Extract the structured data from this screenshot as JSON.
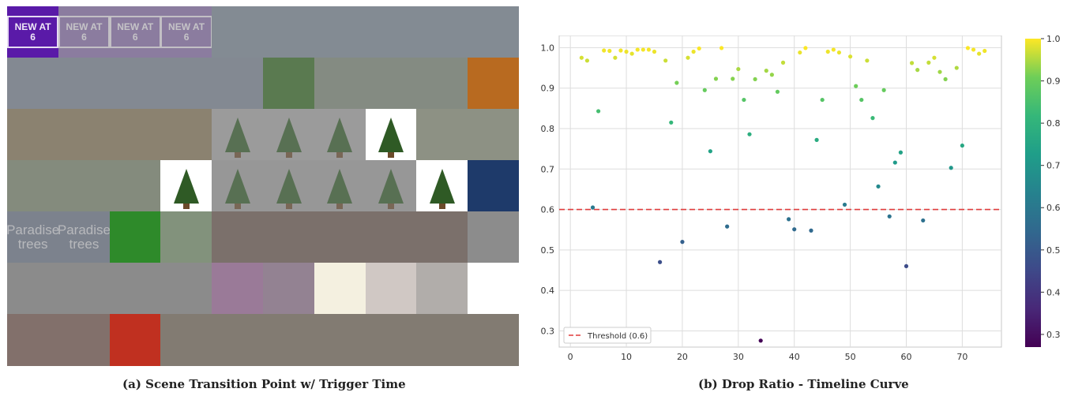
{
  "panel_a": {
    "caption": "(a) Scene Transition Point w/ Trigger Time",
    "rows": 7,
    "cols": 10,
    "highlight_color": "#5a1aa8",
    "tiles": [
      {
        "color": "#5a1aa8",
        "text": "NEW AT 6",
        "style": "boxed",
        "bright": true
      },
      {
        "color": "#8a70b0",
        "text": "NEW AT 6",
        "style": "boxed"
      },
      {
        "color": "#8a70b0",
        "text": "NEW AT 6",
        "style": "boxed"
      },
      {
        "color": "#8a70b0",
        "text": "NEW AT 6",
        "style": "boxed"
      },
      {
        "color": "#7d8a9a"
      },
      {
        "color": "#7d8a9a"
      },
      {
        "color": "#7d8a9a"
      },
      {
        "color": "#7d8a9a"
      },
      {
        "color": "#7d8a9a"
      },
      {
        "color": "#7d8a9a"
      },
      {
        "color": "#7d8898"
      },
      {
        "color": "#7d8898"
      },
      {
        "color": "#7d8898"
      },
      {
        "color": "#7d8898"
      },
      {
        "color": "#7d8898"
      },
      {
        "color": "#5a7a50",
        "bright": true
      },
      {
        "color": "#7e8a7a"
      },
      {
        "color": "#7e8a7a"
      },
      {
        "color": "#7e8a7a"
      },
      {
        "color": "#b86a20",
        "bright": true
      },
      {
        "color": "#8a7a5a"
      },
      {
        "color": "#8a7a5a"
      },
      {
        "color": "#8a7a5a"
      },
      {
        "color": "#8a7a5a"
      },
      {
        "color": "#a8a8a8",
        "tree": true
      },
      {
        "color": "#a8a8a8",
        "tree": true
      },
      {
        "color": "#a8a8a8",
        "tree": true
      },
      {
        "color": "#ffffff",
        "tree": true,
        "bright": true
      },
      {
        "color": "#8e957e"
      },
      {
        "color": "#8e957e"
      },
      {
        "color": "#7f8a72"
      },
      {
        "color": "#7f8a72"
      },
      {
        "color": "#7f8a72"
      },
      {
        "color": "#ffffff",
        "tree": true,
        "bright": true
      },
      {
        "color": "#a0a0a0",
        "tree": true
      },
      {
        "color": "#a0a0a0",
        "tree": true
      },
      {
        "color": "#a0a0a0",
        "tree": true
      },
      {
        "color": "#a0a0a0",
        "tree": true
      },
      {
        "color": "#ffffff",
        "tree": true,
        "bright": true
      },
      {
        "color": "#1e3a6a",
        "bright": true
      },
      {
        "color": "#6f7a8e",
        "text": "Paradise trees",
        "style": "para"
      },
      {
        "color": "#6f7a8e",
        "text": "Paradise trees",
        "style": "para"
      },
      {
        "color": "#2e8a2a",
        "bright": true
      },
      {
        "color": "#7a9870"
      },
      {
        "color": "#6e5a50"
      },
      {
        "color": "#6e5a50"
      },
      {
        "color": "#6e5a50"
      },
      {
        "color": "#6e5a50"
      },
      {
        "color": "#6e5a50"
      },
      {
        "color": "#8c8c8c"
      },
      {
        "color": "#8a8a8a"
      },
      {
        "color": "#8a8a8a"
      },
      {
        "color": "#8a8a8a"
      },
      {
        "color": "#8a8a8a"
      },
      {
        "color": "#9a7a98",
        "bright": true
      },
      {
        "color": "#9a7a98"
      },
      {
        "color": "#f4f0e0",
        "bright": true
      },
      {
        "color": "#d0c8c4",
        "bright": true
      },
      {
        "color": "#d0c8c4"
      },
      {
        "color": "#ffffff",
        "bright": true
      },
      {
        "color": "#7a5a50"
      },
      {
        "color": "#7a5a50"
      },
      {
        "color": "#c03020",
        "bright": true
      },
      {
        "color": "#7a6e5e"
      },
      {
        "color": "#7a6e5e"
      },
      {
        "color": "#7a6e5e"
      },
      {
        "color": "#7a6e5e"
      },
      {
        "color": "#7a6e5e"
      },
      {
        "color": "#7a6e5e"
      },
      {
        "color": "#7a6e5e"
      }
    ]
  },
  "panel_b": {
    "caption": "(b) Drop Ratio - Timeline Curve"
  },
  "chart_data": {
    "type": "scatter",
    "title": "",
    "xlabel": "",
    "ylabel": "",
    "xlim": [
      -2,
      77
    ],
    "ylim": [
      0.26,
      1.03
    ],
    "xticks": [
      0,
      10,
      20,
      30,
      40,
      50,
      60,
      70
    ],
    "yticks": [
      0.3,
      0.4,
      0.5,
      0.6,
      0.7,
      0.8,
      0.9,
      1.0
    ],
    "grid": true,
    "colormap": "viridis",
    "colorbar": {
      "range": [
        0.27,
        1.0
      ],
      "ticks": [
        0.3,
        0.4,
        0.5,
        0.6,
        0.7,
        0.8,
        0.9,
        1.0
      ]
    },
    "threshold": {
      "value": 0.6,
      "label": "Threshold (0.6)",
      "color": "#e03c3c",
      "style": "dashed"
    },
    "legend": "bottom-left",
    "points": {
      "x": [
        2,
        3,
        4,
        5,
        6,
        7,
        8,
        9,
        10,
        11,
        12,
        13,
        14,
        15,
        16,
        17,
        18,
        19,
        20,
        21,
        22,
        23,
        24,
        25,
        26,
        27,
        28,
        29,
        30,
        31,
        32,
        33,
        34,
        35,
        36,
        37,
        38,
        39,
        40,
        41,
        42,
        43,
        44,
        45,
        46,
        47,
        48,
        49,
        50,
        51,
        52,
        53,
        54,
        55,
        56,
        57,
        58,
        59,
        60,
        61,
        62,
        63,
        64,
        65,
        66,
        67,
        68,
        69,
        70,
        71,
        72,
        73,
        74
      ],
      "y": [
        0.975,
        0.968,
        0.605,
        0.843,
        0.993,
        0.992,
        0.975,
        0.993,
        0.99,
        0.985,
        0.995,
        0.995,
        0.995,
        0.99,
        0.47,
        0.968,
        0.815,
        0.913,
        0.52,
        0.975,
        0.99,
        0.998,
        0.895,
        0.744,
        0.923,
        0.999,
        0.558,
        0.923,
        0.947,
        0.871,
        0.786,
        0.922,
        0.276,
        0.943,
        0.933,
        0.891,
        0.963,
        0.576,
        0.551,
        0.988,
        0.999,
        0.548,
        0.772,
        0.871,
        0.99,
        0.995,
        0.988,
        0.612,
        0.978,
        0.905,
        0.871,
        0.968,
        0.826,
        0.657,
        0.895,
        0.583,
        0.716,
        0.741,
        0.46,
        0.962,
        0.945,
        0.573,
        0.963,
        0.975,
        0.94,
        0.922,
        0.703,
        0.95,
        0.758,
        0.999,
        0.995,
        0.985,
        0.992
      ]
    }
  }
}
